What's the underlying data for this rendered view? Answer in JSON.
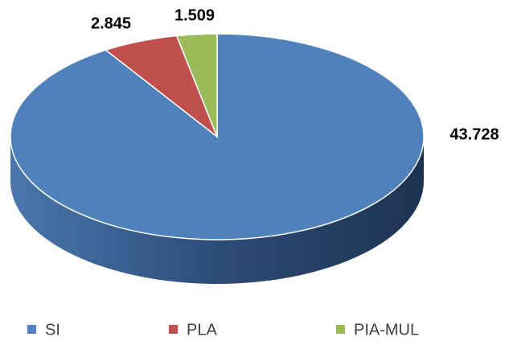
{
  "chart_data": {
    "type": "pie",
    "categories": [
      "SI",
      "PLA",
      "PIA-MUL"
    ],
    "values": [
      43728,
      2845,
      1509
    ],
    "value_labels": [
      "43.728",
      "2.845",
      "1.509"
    ],
    "colors": [
      "#4f81bd",
      "#c0504d",
      "#9bbb59"
    ],
    "legend": "bottom"
  }
}
